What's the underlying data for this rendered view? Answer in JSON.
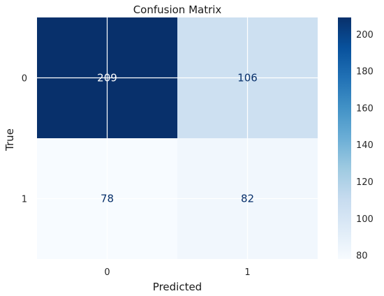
{
  "chart_data": {
    "type": "heatmap",
    "title": "Confusion Matrix",
    "xlabel": "Predicted",
    "ylabel": "True",
    "x_categories": [
      "0",
      "1"
    ],
    "y_categories": [
      "0",
      "1"
    ],
    "matrix": [
      [
        209,
        106
      ],
      [
        78,
        82
      ]
    ],
    "colormap": "Blues",
    "colorbar": {
      "range": [
        78,
        209
      ],
      "ticks": [
        80,
        100,
        120,
        140,
        160,
        180,
        200
      ]
    },
    "grid": true
  }
}
